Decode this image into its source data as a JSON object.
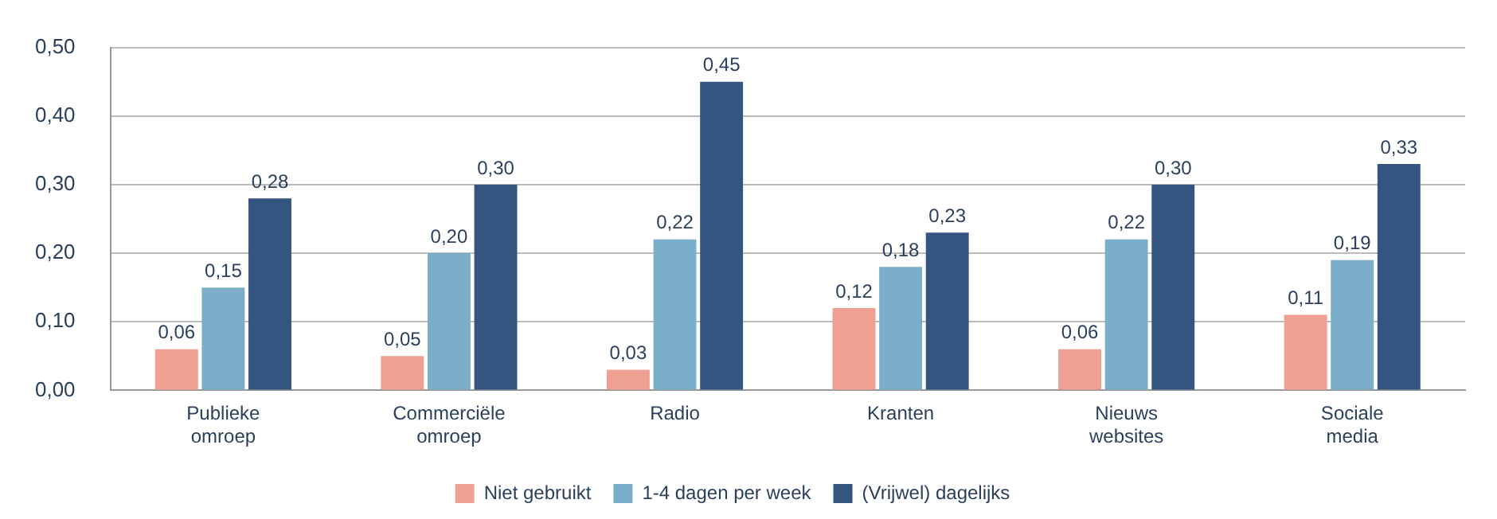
{
  "chart_data": {
    "type": "bar",
    "categories": [
      "Publieke omroep",
      "Commerciële omroep",
      "Radio",
      "Kranten",
      "Nieuws websites",
      "Sociale media"
    ],
    "series": [
      {
        "name": "Niet gebruikt",
        "color": "#f0a093",
        "values": [
          0.06,
          0.05,
          0.03,
          0.12,
          0.06,
          0.11
        ],
        "value_labels": [
          "0,06",
          "0,05",
          "0,03",
          "0,12",
          "0,06",
          "0,11"
        ]
      },
      {
        "name": "1-4 dagen per week",
        "color": "#7bafc9",
        "values": [
          0.15,
          0.2,
          0.22,
          0.18,
          0.22,
          0.19
        ],
        "value_labels": [
          "0,15",
          "0,20",
          "0,22",
          "0,18",
          "0,22",
          "0,19"
        ]
      },
      {
        "name": "(Vrijwel) dagelijks",
        "color": "#34557f",
        "values": [
          0.28,
          0.3,
          0.45,
          0.23,
          0.3,
          0.33
        ],
        "value_labels": [
          "0,28",
          "0,30",
          "0,45",
          "0,23",
          "0,30",
          "0,33"
        ]
      }
    ],
    "ylim": [
      0,
      0.5
    ],
    "yticks": [
      {
        "value": 0,
        "label": "0,00"
      },
      {
        "value": 0.1,
        "label": "0,10"
      },
      {
        "value": 0.2,
        "label": "0,20"
      },
      {
        "value": 0.3,
        "label": "0,30"
      },
      {
        "value": 0.4,
        "label": "0,40"
      },
      {
        "value": 0.5,
        "label": "0,50"
      }
    ],
    "grid": "y",
    "legend": "bottom"
  }
}
